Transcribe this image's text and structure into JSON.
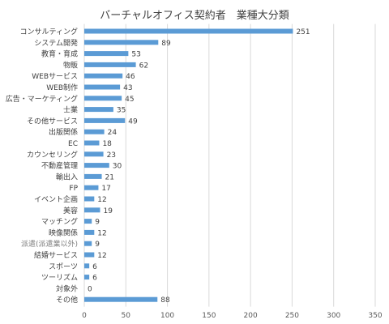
{
  "chart_data": {
    "type": "bar",
    "orientation": "horizontal",
    "title": "バーチャルオフィス契約者　業種大分類",
    "categories": [
      "コンサルティング",
      "システム開発",
      "教育・育成",
      "物販",
      "WEBサービス",
      "WEB制作",
      "広告・マーケティング",
      "士業",
      "その他サービス",
      "出版関係",
      "EC",
      "カウンセリング",
      "不動産管理",
      "輸出入",
      "FP",
      "イベント企画",
      "美容",
      "マッチング",
      "映像関係",
      "派遣(派遣業以外)",
      "結婚サービス",
      "スポーツ",
      "ツーリズム",
      "対象外",
      "その他"
    ],
    "values": [
      251,
      89,
      53,
      62,
      46,
      43,
      45,
      35,
      49,
      24,
      18,
      23,
      30,
      21,
      17,
      12,
      19,
      9,
      12,
      9,
      12,
      6,
      6,
      0,
      88
    ],
    "muted_categories": [
      "派遣(派遣業以外)"
    ],
    "xlim": [
      0,
      350
    ],
    "xticks": [
      0,
      50,
      100,
      150,
      200,
      250,
      300,
      350
    ],
    "grid": true,
    "bar_color": "#5b9bd5",
    "show_data_labels": true
  }
}
